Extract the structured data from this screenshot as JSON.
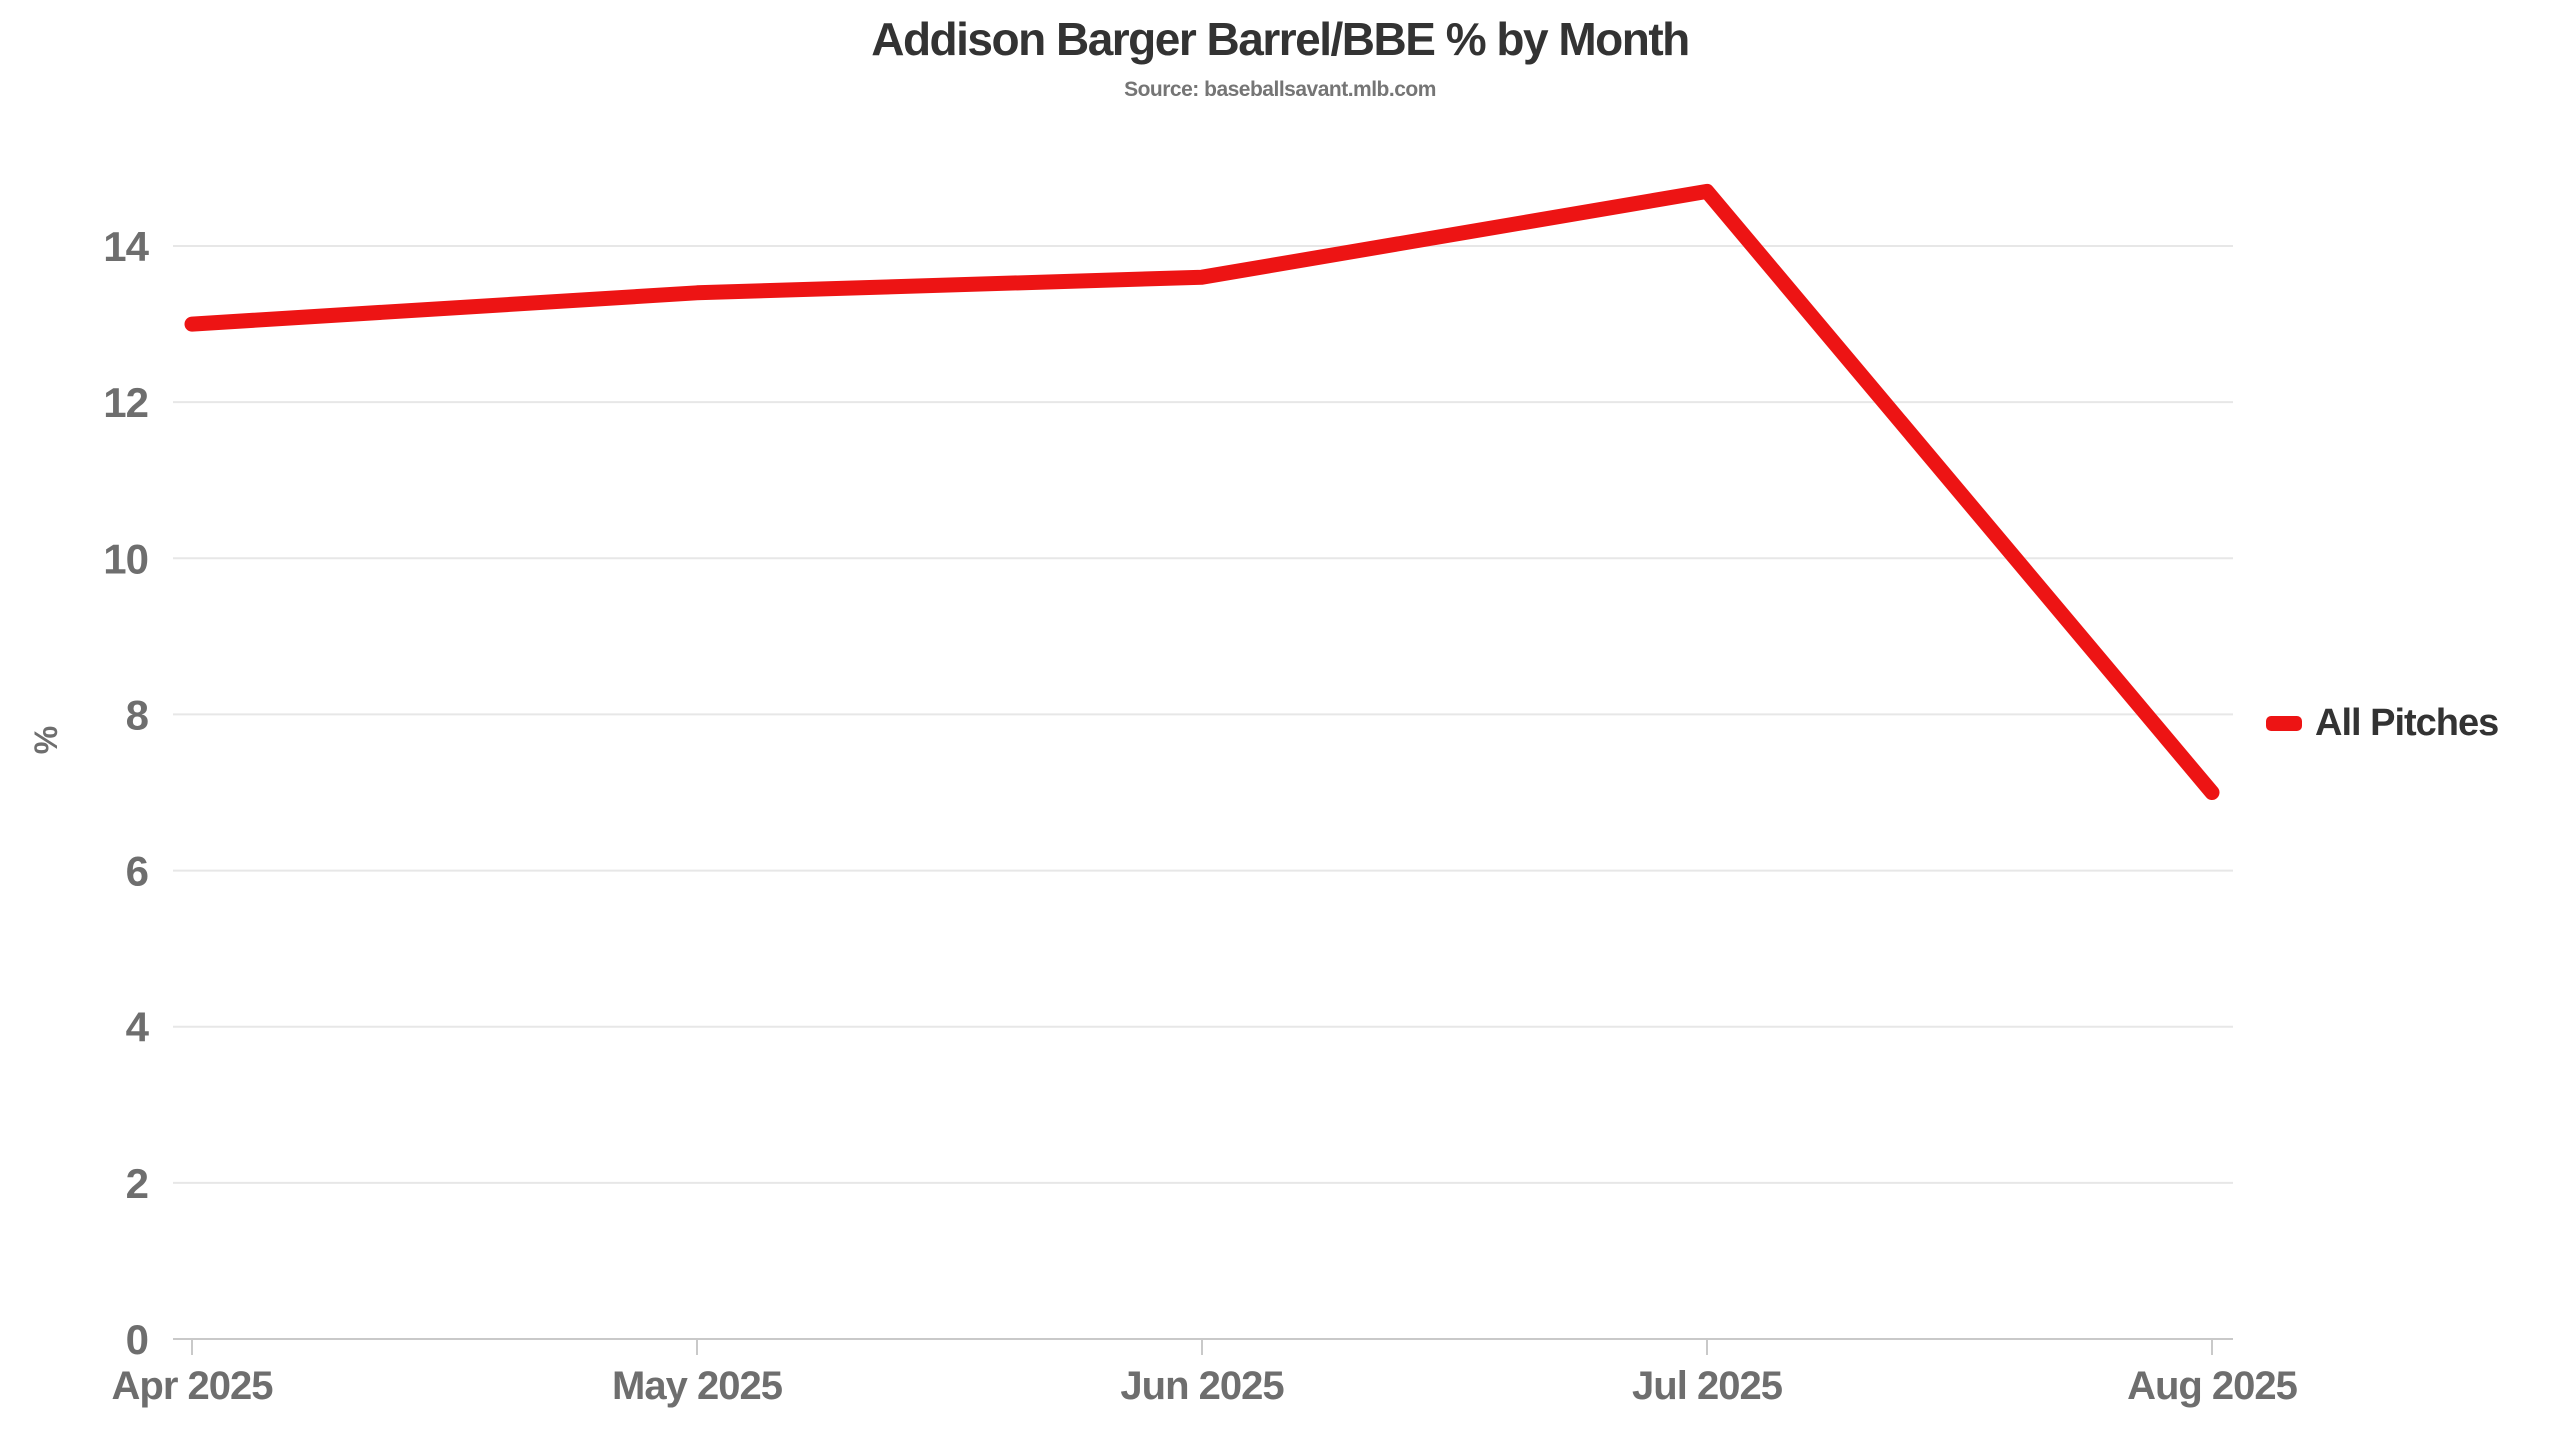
{
  "title": "Addison Barger Barrel/BBE % by Month",
  "subtitle": "Source: baseballsavant.mlb.com",
  "legend": {
    "label": "All Pitches",
    "swatch_color": "#ED1414"
  },
  "colors": {
    "line": "#ED1414",
    "grid": "#E7E7E7",
    "axis_line": "#C9C9C9",
    "tick_label": "#6E6E6E",
    "title_text": "#333333",
    "subtitle_text": "#757575",
    "legend_text": "#333333",
    "background": "#FFFFFF"
  },
  "chart_data": {
    "type": "line",
    "x": [
      "Apr 2025",
      "May 2025",
      "Jun 2025",
      "Jul 2025",
      "Aug 2025"
    ],
    "series": [
      {
        "name": "All Pitches",
        "values": [
          13.0,
          13.4,
          13.6,
          14.7,
          7.0
        ],
        "color": "#ED1414"
      }
    ],
    "title": "Addison Barger Barrel/BBE % by Month",
    "subtitle": "Source: baseballsavant.mlb.com",
    "xlabel": "",
    "ylabel": "%",
    "ylim": [
      0,
      14
    ],
    "yticks": [
      0,
      2,
      4,
      6,
      8,
      10,
      12,
      14
    ],
    "grid": true,
    "legend_position": "right"
  }
}
